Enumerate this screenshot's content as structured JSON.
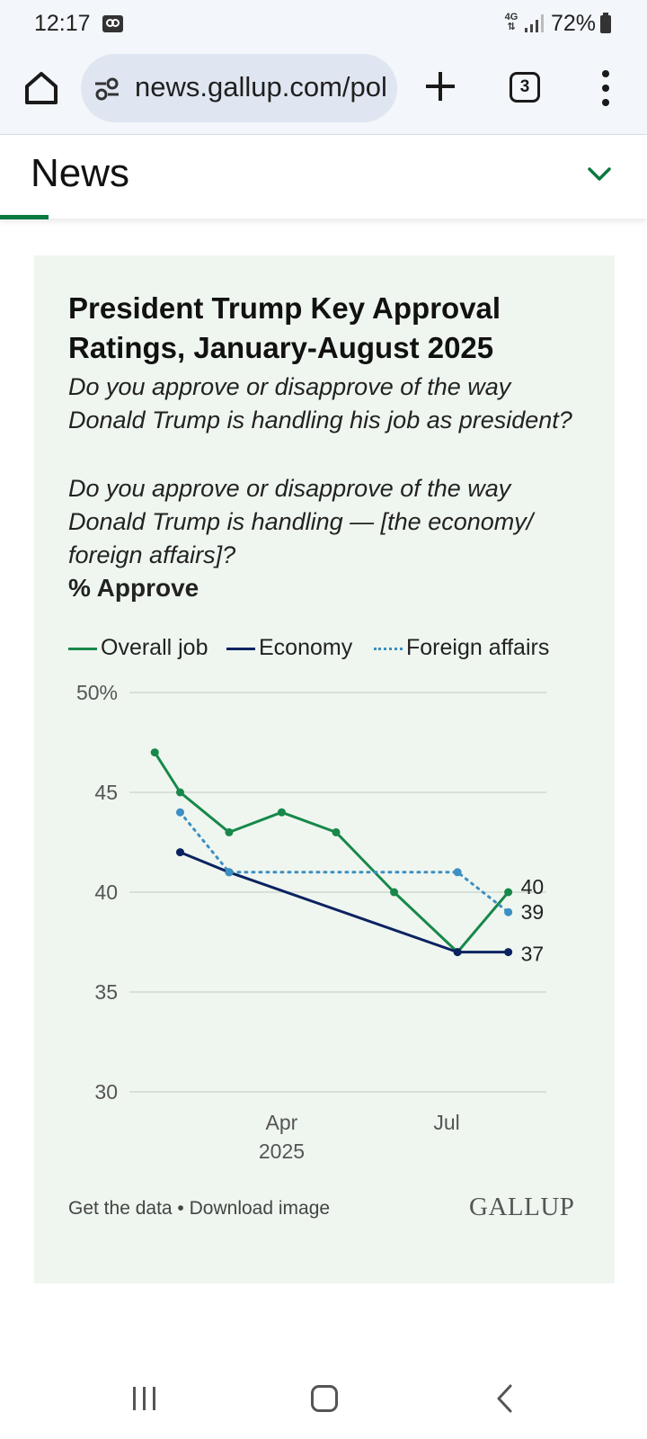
{
  "status_bar": {
    "time": "12:17",
    "network": "4G",
    "battery": "72%"
  },
  "browser": {
    "url": "news.gallup.com/pol",
    "tab_count": "3"
  },
  "section": {
    "title": "News"
  },
  "chart": {
    "title": "President Trump Key Approval Ratings, January-August 2025",
    "question1": "Do you approve or disapprove of the way Donald Trump is handling his job as president?",
    "question2": "Do you approve or disapprove of the way Donald Trump is handling — [the economy/ foreign affairs]?",
    "measure": "% Approve",
    "footer_data_link": "Get the data",
    "footer_separator": " • ",
    "footer_image_link": "Download image",
    "logo": "GALLUP"
  },
  "chart_data": {
    "type": "line",
    "y_ticks": [
      "50%",
      "45",
      "40",
      "35",
      "30"
    ],
    "ylim": [
      30,
      50
    ],
    "x_ticks": [
      {
        "label": "Apr",
        "sublabel": "2025",
        "date": "2025-04-01"
      },
      {
        "label": "Jul",
        "sublabel": "",
        "date": "2025-07-01"
      }
    ],
    "x_range": [
      "2025-01-07",
      "2025-08-25"
    ],
    "legend_position": "top",
    "grid": true,
    "series": [
      {
        "name": "Overall job",
        "color": "#17884a",
        "style": "solid",
        "points": [
          {
            "date": "2025-01-21",
            "value": 47
          },
          {
            "date": "2025-02-04",
            "value": 45
          },
          {
            "date": "2025-03-03",
            "value": 43
          },
          {
            "date": "2025-04-01",
            "value": 44
          },
          {
            "date": "2025-05-01",
            "value": 43
          },
          {
            "date": "2025-06-02",
            "value": 40
          },
          {
            "date": "2025-07-07",
            "value": 37
          },
          {
            "date": "2025-08-04",
            "value": 40
          }
        ],
        "end_label": "40"
      },
      {
        "name": "Economy",
        "color": "#0b2260",
        "style": "solid",
        "points": [
          {
            "date": "2025-02-04",
            "value": 42
          },
          {
            "date": "2025-03-03",
            "value": 41
          },
          {
            "date": "2025-07-07",
            "value": 37
          },
          {
            "date": "2025-08-04",
            "value": 37
          }
        ],
        "end_label": "37"
      },
      {
        "name": "Foreign affairs",
        "color": "#3b8fc2",
        "style": "dotted",
        "points": [
          {
            "date": "2025-02-04",
            "value": 44
          },
          {
            "date": "2025-03-03",
            "value": 41
          },
          {
            "date": "2025-07-07",
            "value": 41
          },
          {
            "date": "2025-08-04",
            "value": 39
          }
        ],
        "end_label": "39"
      }
    ]
  }
}
